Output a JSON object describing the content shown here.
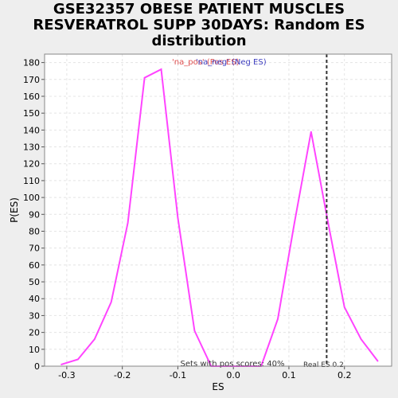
{
  "title_lines": [
    "GSE32357 OBESE PATIENT MUSCLES",
    "RESVERATROL SUPP 30DAYS: Random ES",
    "distribution"
  ],
  "legend": {
    "pos_label": "'na_pos' (Pos ES)",
    "neg_label": "'na_neg' (Neg ES)"
  },
  "colors": {
    "line": "#ff44ff",
    "grid": "#e4e4e4",
    "plot_bg": "#ffffff",
    "page_bg": "#eeeeee",
    "legend_pos": "#e05050",
    "legend_neg": "#4040c0",
    "real_es_line": "#333333"
  },
  "chart_data": {
    "type": "line",
    "xlabel": "ES",
    "ylabel": "P(ES)",
    "xlim": [
      -0.34,
      0.285
    ],
    "ylim": [
      0,
      185
    ],
    "x_ticks": [
      -0.3,
      -0.2,
      -0.1,
      0.0,
      0.1,
      0.2
    ],
    "x_tick_labels": [
      "-0.3",
      "-0.2",
      "-0.1",
      "0.0",
      "0.1",
      "0.2"
    ],
    "y_ticks": [
      0,
      10,
      20,
      30,
      40,
      50,
      60,
      70,
      80,
      90,
      100,
      110,
      120,
      130,
      140,
      150,
      160,
      170,
      180
    ],
    "grid": true,
    "legend_position": "top-center",
    "series": [
      {
        "x": [
          -0.31,
          -0.28,
          -0.25,
          -0.22,
          -0.19,
          -0.16,
          -0.13,
          -0.1,
          -0.07,
          -0.04,
          -0.01,
          0.02,
          0.05,
          0.08,
          0.11,
          0.14,
          0.17,
          0.2,
          0.23,
          0.26
        ],
        "y": [
          1,
          4,
          16,
          38,
          85,
          171,
          176,
          88,
          21,
          0,
          0,
          0,
          0,
          28,
          85,
          139,
          86,
          35,
          16,
          3
        ]
      }
    ],
    "real_es": 0.168,
    "annotations": {
      "pos_scores": "Sets with pos scores: 40%",
      "real_es_label": "Real ES 0.2"
    }
  }
}
